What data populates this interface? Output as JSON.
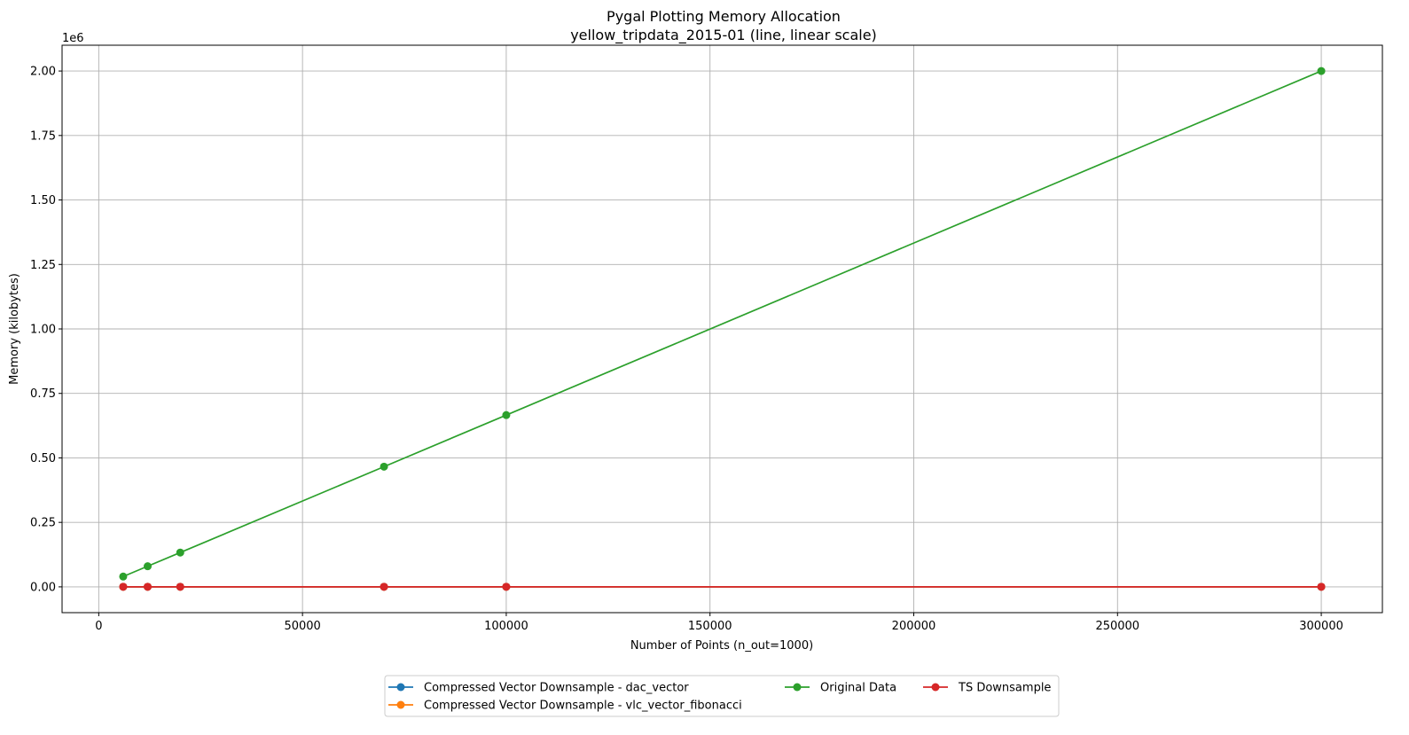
{
  "chart_data": {
    "type": "line",
    "title": "Pygal Plotting Memory Allocation",
    "subtitle": "yellow_tripdata_2015-01 (line, linear scale)",
    "xlabel": "Number of Points (n_out=1000)",
    "ylabel": "Memory (kilobytes)",
    "y_offset_label": "1e6",
    "xlim": [
      -9000,
      315000
    ],
    "ylim": [
      -100000,
      2100000
    ],
    "x_ticks": [
      0,
      50000,
      100000,
      150000,
      200000,
      250000,
      300000
    ],
    "x_tick_labels": [
      "0",
      "50000",
      "100000",
      "150000",
      "200000",
      "250000",
      "300000"
    ],
    "y_ticks": [
      0,
      250000,
      500000,
      750000,
      1000000,
      1250000,
      1500000,
      1750000,
      2000000
    ],
    "y_tick_labels": [
      "0.00",
      "0.25",
      "0.50",
      "0.75",
      "1.00",
      "1.25",
      "1.50",
      "1.75",
      "2.00"
    ],
    "grid": true,
    "legend_position": "below-center",
    "legend_columns": 3,
    "x": [
      6000,
      12000,
      20000,
      70000,
      100000,
      300000
    ],
    "series": [
      {
        "name": "Compressed Vector Downsample - dac_vector",
        "color": "#1f77b4",
        "values": [
          200,
          200,
          200,
          200,
          200,
          200
        ]
      },
      {
        "name": "Compressed Vector Downsample - vlc_vector_fibonacci",
        "color": "#ff7f0e",
        "values": [
          200,
          200,
          200,
          200,
          200,
          200
        ]
      },
      {
        "name": "Original Data",
        "color": "#2ca02c",
        "values": [
          40000,
          80000,
          133000,
          466000,
          666000,
          2000000
        ]
      },
      {
        "name": "TS Downsample",
        "color": "#d62728",
        "values": [
          200,
          200,
          200,
          200,
          200,
          200
        ]
      }
    ]
  }
}
